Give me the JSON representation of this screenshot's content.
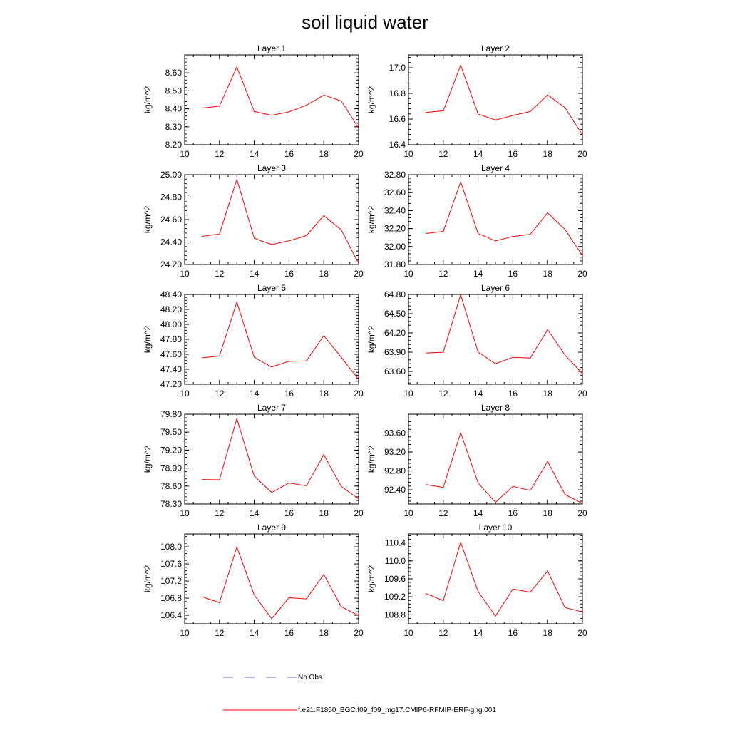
{
  "title": "soil liquid water",
  "legend": {
    "entries": [
      {
        "label": "No Obs",
        "color": "#6b6bd6",
        "style": "dashed"
      },
      {
        "label": "f.e21.F1850_BGC.f09_f09_mg17.CMIP6-RFMIP-ERF-ghg.001",
        "color": "#ff0000",
        "style": "solid"
      }
    ]
  },
  "chart_data": [
    {
      "type": "line",
      "title": "Layer 1",
      "ylabel": "kg/m^2",
      "xlim": [
        10,
        20
      ],
      "ylim": [
        8.2,
        8.7
      ],
      "xticks": [
        "10",
        "12",
        "14",
        "16",
        "18",
        "20"
      ],
      "yticks": [
        "8.20",
        "8.30",
        "8.40",
        "8.50",
        "8.60"
      ],
      "series": [
        {
          "color": "#ff0000",
          "x": [
            11,
            12,
            13,
            14,
            15,
            16,
            17,
            18,
            19,
            20
          ],
          "y": [
            8.403,
            8.415,
            8.633,
            8.385,
            8.364,
            8.383,
            8.42,
            8.476,
            8.444,
            8.293
          ]
        }
      ]
    },
    {
      "type": "line",
      "title": "Layer 2",
      "ylabel": "kg/m^2",
      "xlim": [
        10,
        20
      ],
      "ylim": [
        16.4,
        17.1
      ],
      "xticks": [
        "10",
        "12",
        "14",
        "16",
        "18",
        "20"
      ],
      "yticks": [
        "16.4",
        "16.6",
        "16.8",
        "17.0"
      ],
      "series": [
        {
          "color": "#ff0000",
          "x": [
            11,
            12,
            13,
            14,
            15,
            16,
            17,
            18,
            19,
            20
          ],
          "y": [
            16.652,
            16.664,
            17.02,
            16.64,
            16.592,
            16.628,
            16.659,
            16.788,
            16.689,
            16.477
          ]
        }
      ]
    },
    {
      "type": "line",
      "title": "Layer 3",
      "ylabel": "kg/m^2",
      "xlim": [
        10,
        20
      ],
      "ylim": [
        24.2,
        25.0
      ],
      "xticks": [
        "10",
        "12",
        "14",
        "16",
        "18",
        "20"
      ],
      "yticks": [
        "24.20",
        "24.40",
        "24.60",
        "24.80",
        "25.00"
      ],
      "series": [
        {
          "color": "#ff0000",
          "x": [
            11,
            12,
            13,
            14,
            15,
            16,
            17,
            18,
            19,
            20
          ],
          "y": [
            24.451,
            24.472,
            24.958,
            24.434,
            24.378,
            24.411,
            24.457,
            24.635,
            24.509,
            24.208
          ]
        }
      ]
    },
    {
      "type": "line",
      "title": "Layer 4",
      "ylabel": "kg/m^2",
      "xlim": [
        10,
        20
      ],
      "ylim": [
        31.8,
        32.8
      ],
      "xticks": [
        "10",
        "12",
        "14",
        "16",
        "18",
        "20"
      ],
      "yticks": [
        "31.80",
        "32.00",
        "32.20",
        "32.40",
        "32.60",
        "32.80"
      ],
      "series": [
        {
          "color": "#ff0000",
          "x": [
            11,
            12,
            13,
            14,
            15,
            16,
            17,
            18,
            19,
            20
          ],
          "y": [
            32.145,
            32.168,
            32.72,
            32.145,
            32.063,
            32.112,
            32.135,
            32.375,
            32.19,
            31.898
          ]
        }
      ]
    },
    {
      "type": "line",
      "title": "Layer 5",
      "ylabel": "kg/m^2",
      "xlim": [
        10,
        20
      ],
      "ylim": [
        47.2,
        48.4
      ],
      "xticks": [
        "10",
        "12",
        "14",
        "16",
        "18",
        "20"
      ],
      "yticks": [
        "47.20",
        "47.40",
        "47.60",
        "47.80",
        "48.00",
        "48.20",
        "48.40"
      ],
      "series": [
        {
          "color": "#ff0000",
          "x": [
            11,
            12,
            13,
            14,
            15,
            16,
            17,
            18,
            19,
            20
          ],
          "y": [
            47.552,
            47.577,
            48.297,
            47.559,
            47.431,
            47.506,
            47.512,
            47.849,
            47.562,
            47.266
          ]
        }
      ]
    },
    {
      "type": "line",
      "title": "Layer 6",
      "ylabel": "kg/m^2",
      "xlim": [
        10,
        20
      ],
      "ylim": [
        63.4,
        64.8
      ],
      "xticks": [
        "10",
        "12",
        "14",
        "16",
        "18",
        "20"
      ],
      "yticks": [
        "63.60",
        "63.90",
        "64.20",
        "64.50",
        "64.80"
      ],
      "series": [
        {
          "color": "#ff0000",
          "x": [
            11,
            12,
            13,
            14,
            15,
            16,
            17,
            18,
            19,
            20
          ],
          "y": [
            63.888,
            63.899,
            64.795,
            63.902,
            63.72,
            63.82,
            63.809,
            64.25,
            63.854,
            63.566
          ]
        }
      ]
    },
    {
      "type": "line",
      "title": "Layer 7",
      "ylabel": "kg/m^2",
      "xlim": [
        10,
        20
      ],
      "ylim": [
        78.3,
        79.8
      ],
      "xticks": [
        "10",
        "12",
        "14",
        "16",
        "18",
        "20"
      ],
      "yticks": [
        "78.30",
        "78.60",
        "78.90",
        "79.20",
        "79.50",
        "79.80"
      ],
      "series": [
        {
          "color": "#ff0000",
          "x": [
            11,
            12,
            13,
            14,
            15,
            16,
            17,
            18,
            19,
            20
          ],
          "y": [
            78.71,
            78.705,
            79.726,
            78.766,
            78.493,
            78.651,
            78.604,
            79.124,
            78.594,
            78.384
          ]
        }
      ]
    },
    {
      "type": "line",
      "title": "Layer 8",
      "ylabel": "kg/m^2",
      "xlim": [
        10,
        20
      ],
      "ylim": [
        92.1,
        94.0
      ],
      "xticks": [
        "10",
        "12",
        "14",
        "16",
        "18",
        "20"
      ],
      "yticks": [
        "92.40",
        "92.80",
        "93.20",
        "93.60"
      ],
      "series": [
        {
          "color": "#ff0000",
          "x": [
            11,
            12,
            13,
            14,
            15,
            16,
            17,
            18,
            19,
            20
          ],
          "y": [
            92.51,
            92.452,
            93.61,
            92.548,
            92.135,
            92.472,
            92.385,
            93.0,
            92.3,
            92.112
          ]
        }
      ]
    },
    {
      "type": "line",
      "title": "Layer 9",
      "ylabel": "kg/m^2",
      "xlim": [
        10,
        20
      ],
      "ylim": [
        106.2,
        108.3
      ],
      "xticks": [
        "10",
        "12",
        "14",
        "16",
        "18",
        "20"
      ],
      "yticks": [
        "106.4",
        "106.8",
        "107.2",
        "107.6",
        "108.0"
      ],
      "series": [
        {
          "color": "#ff0000",
          "x": [
            11,
            12,
            13,
            14,
            15,
            16,
            17,
            18,
            19,
            20
          ],
          "y": [
            106.834,
            106.691,
            107.993,
            106.875,
            106.32,
            106.808,
            106.781,
            107.353,
            106.6,
            106.393
          ]
        }
      ]
    },
    {
      "type": "line",
      "title": "Layer 10",
      "ylabel": "kg/m^2",
      "xlim": [
        10,
        20
      ],
      "ylim": [
        108.6,
        110.6
      ],
      "xticks": [
        "10",
        "12",
        "14",
        "16",
        "18",
        "20"
      ],
      "yticks": [
        "108.8",
        "109.2",
        "109.6",
        "110.0",
        "110.4"
      ],
      "series": [
        {
          "color": "#ff0000",
          "x": [
            11,
            12,
            13,
            14,
            15,
            16,
            17,
            18,
            19,
            20
          ],
          "y": [
            109.274,
            109.115,
            110.415,
            109.323,
            108.769,
            109.375,
            109.303,
            109.774,
            108.96,
            108.865
          ]
        }
      ]
    }
  ]
}
